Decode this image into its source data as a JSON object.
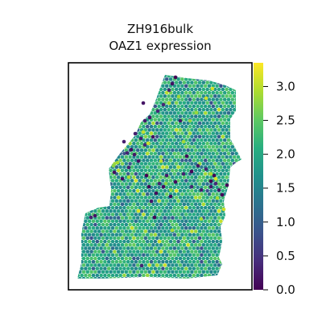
{
  "chart_data": {
    "type": "scatter",
    "title_line1": "ZH916bulk",
    "title_line2": "OAZ1 expression",
    "xlabel": "",
    "ylabel": "",
    "colormap": "viridis",
    "colorbar": {
      "min": 0.0,
      "max": 3.35,
      "ticks": [
        "0.0",
        "0.5",
        "1.0",
        "1.5",
        "2.0",
        "2.5",
        "3.0"
      ]
    },
    "value_summary": {
      "typical_range": [
        1.5,
        2.5
      ],
      "low_outlier_value": 0.0,
      "high_outlier_value": 3.2
    },
    "grid": false
  }
}
